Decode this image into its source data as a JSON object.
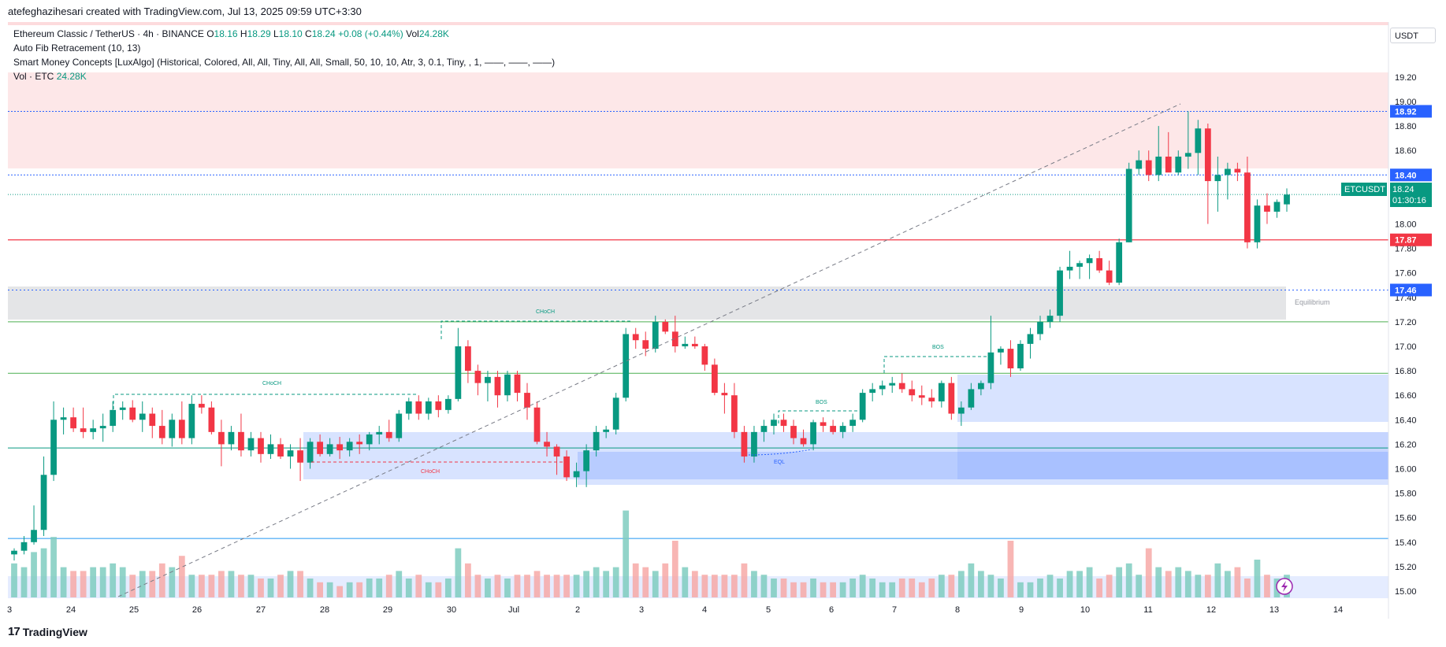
{
  "header": {
    "text": "atefeghazihesari created with TradingView.com, Jul 13, 2025 09:59 UTC+3:30"
  },
  "legend": {
    "symbol": "Ethereum Classic / TetherUS · 4h · BINANCE",
    "o_label": "O",
    "o": "18.16",
    "h_label": "H",
    "h": "18.29",
    "l_label": "L",
    "l": "18.10",
    "c_label": "C",
    "c": "18.24",
    "change": "+0.08 (+0.44%)",
    "vol_label": "Vol",
    "vol": "24.28K",
    "fib": "Auto Fib Retracement (10, 13)",
    "smc": "Smart Money Concepts [LuxAlgo] (Historical, Colored, All, All, Tiny, All, All, Small, 50, 10, 10, Atr, 3, 0.1, Tiny, , 1, ——, ——, ——)",
    "vol_name": "Vol · ETC",
    "vol_value": "24.28K"
  },
  "currency": "USDT",
  "footer": {
    "brand": "TradingView",
    "logo": "17"
  },
  "colors": {
    "up": "#089981",
    "down": "#f23645",
    "up_vol": "#7fcdbf",
    "down_vol": "#f7a9a7",
    "accent": "#2962ff"
  },
  "price_badge": {
    "symbol": "ETCUSDT",
    "price": "18.24",
    "countdown": "01:30:16"
  },
  "level_badges": [
    "18.92",
    "18.40",
    "17.87",
    "17.46"
  ],
  "annotations": {
    "choch1": "CHoCH",
    "choch2": "CHoCH",
    "choch3": "CHoCH",
    "bos1": "BOS",
    "bos2": "BOS",
    "eql": "EQL",
    "equilibrium": "Equilibrium"
  },
  "chart_data": {
    "type": "candlestick",
    "y_ticks": [
      "19.20",
      "19.00",
      "18.80",
      "18.60",
      "18.20",
      "18.00",
      "17.80",
      "17.60",
      "17.40",
      "17.20",
      "17.00",
      "16.80",
      "16.60",
      "16.40",
      "16.20",
      "16.00",
      "15.80",
      "15.60",
      "15.40",
      "15.20",
      "15.00"
    ],
    "x_ticks": [
      "3",
      "24",
      "25",
      "26",
      "27",
      "28",
      "29",
      "30",
      "Jul",
      "2",
      "3",
      "4",
      "5",
      "6",
      "7",
      "8",
      "9",
      "10",
      "11",
      "12",
      "13",
      "14"
    ],
    "ylim": [
      14.9,
      19.3
    ],
    "horizontal_levels": [
      18.92,
      18.4,
      17.87,
      17.46
    ],
    "candles": [
      [
        15.3,
        15.35,
        15.25,
        15.33
      ],
      [
        15.33,
        15.45,
        15.3,
        15.4
      ],
      [
        15.4,
        15.7,
        15.38,
        15.5
      ],
      [
        15.5,
        16.1,
        15.45,
        15.95
      ],
      [
        15.95,
        16.55,
        15.9,
        16.4
      ],
      [
        16.4,
        16.5,
        16.28,
        16.42
      ],
      [
        16.42,
        16.5,
        16.3,
        16.33
      ],
      [
        16.33,
        16.5,
        16.25,
        16.3
      ],
      [
        16.3,
        16.4,
        16.24,
        16.33
      ],
      [
        16.33,
        16.45,
        16.22,
        16.35
      ],
      [
        16.35,
        16.55,
        16.3,
        16.48
      ],
      [
        16.48,
        16.55,
        16.4,
        16.5
      ],
      [
        16.5,
        16.56,
        16.38,
        16.4
      ],
      [
        16.4,
        16.55,
        16.3,
        16.45
      ],
      [
        16.45,
        16.5,
        16.25,
        16.35
      ],
      [
        16.35,
        16.48,
        16.2,
        16.25
      ],
      [
        16.25,
        16.45,
        16.18,
        16.4
      ],
      [
        16.4,
        16.55,
        16.2,
        16.25
      ],
      [
        16.25,
        16.6,
        16.2,
        16.53
      ],
      [
        16.53,
        16.6,
        16.45,
        16.5
      ],
      [
        16.5,
        16.55,
        16.28,
        16.3
      ],
      [
        16.3,
        16.4,
        16.02,
        16.2
      ],
      [
        16.2,
        16.35,
        16.15,
        16.3
      ],
      [
        16.3,
        16.45,
        16.1,
        16.15
      ],
      [
        16.15,
        16.3,
        16.1,
        16.25
      ],
      [
        16.25,
        16.3,
        16.05,
        16.12
      ],
      [
        16.12,
        16.28,
        16.08,
        16.2
      ],
      [
        16.2,
        16.25,
        16.08,
        16.1
      ],
      [
        16.1,
        16.2,
        16.0,
        16.15
      ],
      [
        16.15,
        16.25,
        15.9,
        16.05
      ],
      [
        16.05,
        16.25,
        16.0,
        16.22
      ],
      [
        16.22,
        16.28,
        16.1,
        16.12
      ],
      [
        16.12,
        16.25,
        16.1,
        16.2
      ],
      [
        16.2,
        16.26,
        16.08,
        16.15
      ],
      [
        16.15,
        16.25,
        16.1,
        16.22
      ],
      [
        16.22,
        16.28,
        16.12,
        16.2
      ],
      [
        16.2,
        16.3,
        16.15,
        16.28
      ],
      [
        16.28,
        16.35,
        16.2,
        16.3
      ],
      [
        16.3,
        16.4,
        16.22,
        16.25
      ],
      [
        16.25,
        16.48,
        16.22,
        16.45
      ],
      [
        16.45,
        16.58,
        16.4,
        16.55
      ],
      [
        16.55,
        16.6,
        16.4,
        16.45
      ],
      [
        16.45,
        16.58,
        16.4,
        16.55
      ],
      [
        16.55,
        16.6,
        16.42,
        16.48
      ],
      [
        16.48,
        16.6,
        16.45,
        16.57
      ],
      [
        16.57,
        17.15,
        16.55,
        17.0
      ],
      [
        17.0,
        17.05,
        16.7,
        16.8
      ],
      [
        16.8,
        16.85,
        16.6,
        16.7
      ],
      [
        16.7,
        16.8,
        16.55,
        16.75
      ],
      [
        16.75,
        16.8,
        16.5,
        16.6
      ],
      [
        16.6,
        16.8,
        16.55,
        16.77
      ],
      [
        16.77,
        16.8,
        16.55,
        16.62
      ],
      [
        16.62,
        16.7,
        16.4,
        16.5
      ],
      [
        16.5,
        16.55,
        16.2,
        16.22
      ],
      [
        16.22,
        16.3,
        16.1,
        16.18
      ],
      [
        16.18,
        16.2,
        15.95,
        16.1
      ],
      [
        16.1,
        16.15,
        15.9,
        15.93
      ],
      [
        15.93,
        16.05,
        15.85,
        15.98
      ],
      [
        15.98,
        16.2,
        15.85,
        16.15
      ],
      [
        16.15,
        16.35,
        16.1,
        16.3
      ],
      [
        16.3,
        16.35,
        16.25,
        16.32
      ],
      [
        16.32,
        16.62,
        16.28,
        16.58
      ],
      [
        16.58,
        17.15,
        16.55,
        17.1
      ],
      [
        17.1,
        17.15,
        16.98,
        17.05
      ],
      [
        17.05,
        17.12,
        16.92,
        16.98
      ],
      [
        16.98,
        17.25,
        16.95,
        17.2
      ],
      [
        17.2,
        17.22,
        17.1,
        17.12
      ],
      [
        17.12,
        17.25,
        16.95,
        17.0
      ],
      [
        17.0,
        17.08,
        16.98,
        17.02
      ],
      [
        17.02,
        17.08,
        16.98,
        17.0
      ],
      [
        17.0,
        17.02,
        16.8,
        16.85
      ],
      [
        16.85,
        16.9,
        16.6,
        16.62
      ],
      [
        16.62,
        16.7,
        16.45,
        16.6
      ],
      [
        16.6,
        16.7,
        16.25,
        16.3
      ],
      [
        16.3,
        16.35,
        16.05,
        16.1
      ],
      [
        16.1,
        16.35,
        16.05,
        16.3
      ],
      [
        16.3,
        16.4,
        16.22,
        16.35
      ],
      [
        16.35,
        16.45,
        16.28,
        16.4
      ],
      [
        16.4,
        16.45,
        16.3,
        16.35
      ],
      [
        16.35,
        16.4,
        16.2,
        16.25
      ],
      [
        16.25,
        16.32,
        16.18,
        16.2
      ],
      [
        16.2,
        16.4,
        16.15,
        16.38
      ],
      [
        16.38,
        16.42,
        16.3,
        16.35
      ],
      [
        16.35,
        16.4,
        16.28,
        16.3
      ],
      [
        16.3,
        16.38,
        16.25,
        16.35
      ],
      [
        16.35,
        16.45,
        16.3,
        16.4
      ],
      [
        16.4,
        16.65,
        16.38,
        16.62
      ],
      [
        16.62,
        16.7,
        16.55,
        16.65
      ],
      [
        16.65,
        16.72,
        16.6,
        16.68
      ],
      [
        16.68,
        16.75,
        16.62,
        16.7
      ],
      [
        16.7,
        16.78,
        16.62,
        16.65
      ],
      [
        16.65,
        16.72,
        16.55,
        16.6
      ],
      [
        16.6,
        16.68,
        16.52,
        16.58
      ],
      [
        16.58,
        16.65,
        16.5,
        16.55
      ],
      [
        16.55,
        16.72,
        16.5,
        16.7
      ],
      [
        16.7,
        16.75,
        16.4,
        16.45
      ],
      [
        16.45,
        16.55,
        16.35,
        16.5
      ],
      [
        16.5,
        16.7,
        16.48,
        16.65
      ],
      [
        16.65,
        16.72,
        16.6,
        16.7
      ],
      [
        16.7,
        17.25,
        16.65,
        16.95
      ],
      [
        16.95,
        17.0,
        16.85,
        16.98
      ],
      [
        16.98,
        17.05,
        16.75,
        16.82
      ],
      [
        16.82,
        17.05,
        16.8,
        17.02
      ],
      [
        17.02,
        17.15,
        16.9,
        17.1
      ],
      [
        17.1,
        17.25,
        17.05,
        17.2
      ],
      [
        17.2,
        17.3,
        17.15,
        17.25
      ],
      [
        17.25,
        17.65,
        17.2,
        17.62
      ],
      [
        17.62,
        17.78,
        17.55,
        17.65
      ],
      [
        17.65,
        17.7,
        17.55,
        17.68
      ],
      [
        17.68,
        17.75,
        17.55,
        17.72
      ],
      [
        17.72,
        17.78,
        17.6,
        17.62
      ],
      [
        17.62,
        17.7,
        17.5,
        17.52
      ],
      [
        17.52,
        17.88,
        17.5,
        17.85
      ],
      [
        17.85,
        18.5,
        17.85,
        18.45
      ],
      [
        18.45,
        18.6,
        18.4,
        18.52
      ],
      [
        18.52,
        18.6,
        18.35,
        18.4
      ],
      [
        18.4,
        18.8,
        18.35,
        18.55
      ],
      [
        18.55,
        18.75,
        18.45,
        18.42
      ],
      [
        18.42,
        18.6,
        18.4,
        18.55
      ],
      [
        18.55,
        18.92,
        18.45,
        18.58
      ],
      [
        18.58,
        18.85,
        18.4,
        18.78
      ],
      [
        18.78,
        18.82,
        18.0,
        18.35
      ],
      [
        18.35,
        18.55,
        18.1,
        18.4
      ],
      [
        18.4,
        18.5,
        18.2,
        18.45
      ],
      [
        18.45,
        18.5,
        18.35,
        18.42
      ],
      [
        18.42,
        18.55,
        17.8,
        17.85
      ],
      [
        17.85,
        18.2,
        17.8,
        18.15
      ],
      [
        18.15,
        18.25,
        18.0,
        18.1
      ],
      [
        18.1,
        18.2,
        18.05,
        18.18
      ],
      [
        18.16,
        18.29,
        18.1,
        18.24
      ]
    ],
    "volume": [
      0.9,
      0.8,
      1.2,
      1.3,
      1.6,
      0.8,
      0.7,
      0.7,
      0.8,
      0.8,
      0.9,
      0.8,
      0.6,
      0.7,
      0.7,
      0.9,
      0.8,
      1.1,
      0.6,
      0.6,
      0.6,
      0.7,
      0.7,
      0.6,
      0.6,
      0.5,
      0.5,
      0.6,
      0.7,
      0.7,
      0.5,
      0.4,
      0.4,
      0.3,
      0.4,
      0.4,
      0.5,
      0.5,
      0.6,
      0.7,
      0.5,
      0.6,
      0.4,
      0.4,
      0.5,
      1.3,
      0.9,
      0.6,
      0.5,
      0.6,
      0.5,
      0.6,
      0.6,
      0.7,
      0.6,
      0.6,
      0.6,
      0.6,
      0.7,
      0.8,
      0.7,
      0.8,
      2.3,
      0.9,
      0.8,
      0.7,
      0.9,
      1.5,
      0.8,
      0.7,
      0.6,
      0.6,
      0.6,
      0.6,
      0.9,
      0.7,
      0.6,
      0.5,
      0.5,
      0.4,
      0.4,
      0.5,
      0.4,
      0.4,
      0.4,
      0.5,
      0.6,
      0.5,
      0.4,
      0.4,
      0.5,
      0.5,
      0.4,
      0.5,
      0.6,
      0.6,
      0.7,
      0.9,
      0.7,
      0.6,
      0.5,
      1.5,
      0.4,
      0.4,
      0.5,
      0.6,
      0.5,
      0.7,
      0.7,
      0.8,
      0.5,
      0.6,
      0.8,
      0.9,
      0.6,
      1.3,
      0.8,
      0.7,
      0.8,
      0.7,
      0.6,
      0.6,
      0.9,
      0.7,
      0.8,
      0.5,
      1.0,
      0.6,
      0.5,
      0.6
    ]
  }
}
